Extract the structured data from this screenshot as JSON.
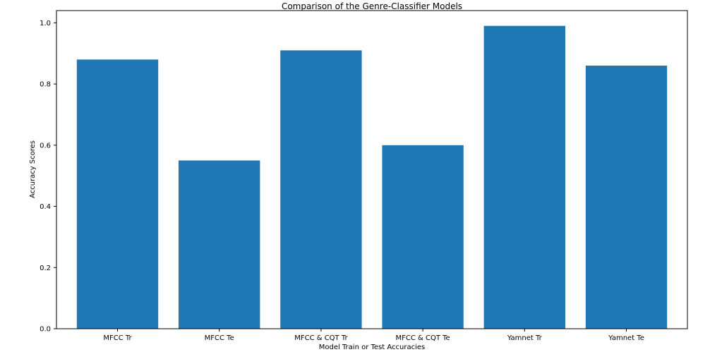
{
  "chart_data": {
    "type": "bar",
    "title": "Comparison of the Genre-Classifier Models",
    "xlabel": "Model Train or Test Accuracies",
    "ylabel": "Accuracy Scores",
    "categories": [
      "MFCC Tr",
      "MFCC Te",
      "MFCC & CQT Tr",
      "MFCC & CQT Te",
      "Yamnet Tr",
      "Yamnet Te"
    ],
    "values": [
      0.88,
      0.55,
      0.91,
      0.6,
      0.99,
      0.86
    ],
    "ylim": [
      0,
      1.04
    ],
    "yticks": [
      "0.0",
      "0.2",
      "0.4",
      "0.6",
      "0.8",
      "1.0"
    ],
    "grid": false,
    "bar_color": "#1f77b4"
  }
}
